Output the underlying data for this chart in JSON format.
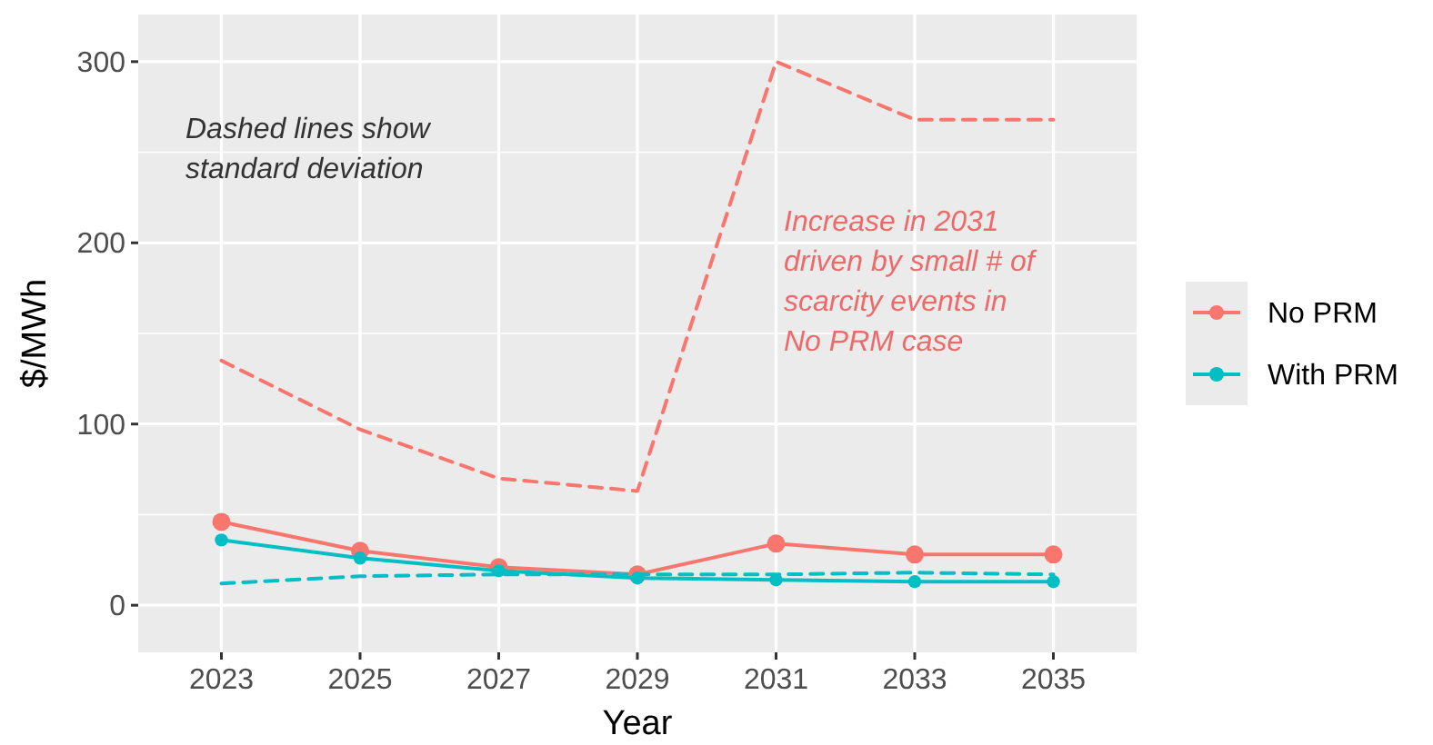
{
  "chart_data": {
    "type": "line",
    "xlabel": "Year",
    "ylabel": "$/MWh",
    "categories": [
      "2023",
      "2025",
      "2027",
      "2029",
      "2031",
      "2033",
      "2035"
    ],
    "series": [
      {
        "name": "No PRM",
        "color": "#f8766d",
        "values": [
          46,
          30,
          21,
          17,
          34,
          28,
          28
        ],
        "marker": "circle",
        "line_style": "solid"
      },
      {
        "name": "With PRM",
        "color": "#00bfc4",
        "values": [
          36,
          26,
          19,
          15,
          14,
          13,
          13
        ],
        "marker": "circle",
        "line_style": "solid"
      },
      {
        "color": "#f8766d",
        "values": [
          135,
          97,
          70,
          63,
          300,
          268,
          268
        ],
        "marker": "none",
        "line_style": "dashed"
      },
      {
        "color": "#00bfc4",
        "values": [
          12,
          16,
          17,
          17,
          17,
          18,
          17
        ],
        "marker": "none",
        "line_style": "dashed"
      }
    ],
    "ylim": [
      -26,
      326
    ],
    "yticks": [
      0,
      100,
      200,
      300
    ],
    "grid": true,
    "legend": "right",
    "annotations": [
      "Dashed lines show\nstandard deviation",
      "Increase in 2031\ndriven by small # of\nscarcity events in\nNo PRM case"
    ]
  }
}
